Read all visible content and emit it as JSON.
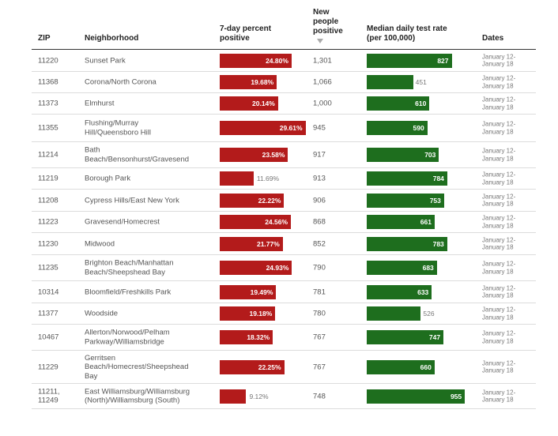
{
  "columns": {
    "zip": "ZIP",
    "neighborhood": "Neighborhood",
    "percent": [
      "7-day percent",
      "positive"
    ],
    "positive": [
      "New",
      "people",
      "positive"
    ],
    "test_rate": [
      "Median daily test rate",
      "(per 100,000)"
    ],
    "dates": "Dates"
  },
  "chart_data": {
    "type": "table",
    "sorted_by": "New people positive (descending)",
    "percent_max": 30,
    "test_rate_max": 1000,
    "rows": [
      {
        "zip": [
          "11220"
        ],
        "neighborhood": [
          "Sunset Park"
        ],
        "percent": 24.8,
        "percent_label": "24.80%",
        "positive": "1,301",
        "test_rate": 827,
        "test_label": "827",
        "dates": [
          "January 12-",
          "January 18"
        ]
      },
      {
        "zip": [
          "11368"
        ],
        "neighborhood": [
          "Corona/North Corona"
        ],
        "percent": 19.68,
        "percent_label": "19.68%",
        "positive": "1,066",
        "test_rate": 451,
        "test_label": "451",
        "dates": [
          "January 12-",
          "January 18"
        ]
      },
      {
        "zip": [
          "11373"
        ],
        "neighborhood": [
          "Elmhurst"
        ],
        "percent": 20.14,
        "percent_label": "20.14%",
        "positive": "1,000",
        "test_rate": 610,
        "test_label": "610",
        "dates": [
          "January 12-",
          "January 18"
        ]
      },
      {
        "zip": [
          "11355"
        ],
        "neighborhood": [
          "Flushing/Murray",
          "Hill/Queensboro Hill"
        ],
        "percent": 29.61,
        "percent_label": "29.61%",
        "positive": "945",
        "test_rate": 590,
        "test_label": "590",
        "dates": [
          "January 12-",
          "January 18"
        ]
      },
      {
        "zip": [
          "11214"
        ],
        "neighborhood": [
          "Bath",
          "Beach/Bensonhurst/Gravesend"
        ],
        "percent": 23.58,
        "percent_label": "23.58%",
        "positive": "917",
        "test_rate": 703,
        "test_label": "703",
        "dates": [
          "January 12-",
          "January 18"
        ]
      },
      {
        "zip": [
          "11219"
        ],
        "neighborhood": [
          "Borough Park"
        ],
        "percent": 11.69,
        "percent_label": "11.69%",
        "positive": "913",
        "test_rate": 784,
        "test_label": "784",
        "dates": [
          "January 12-",
          "January 18"
        ]
      },
      {
        "zip": [
          "11208"
        ],
        "neighborhood": [
          "Cypress Hills/East New York"
        ],
        "percent": 22.22,
        "percent_label": "22.22%",
        "positive": "906",
        "test_rate": 753,
        "test_label": "753",
        "dates": [
          "January 12-",
          "January 18"
        ]
      },
      {
        "zip": [
          "11223"
        ],
        "neighborhood": [
          "Gravesend/Homecrest"
        ],
        "percent": 24.56,
        "percent_label": "24.56%",
        "positive": "868",
        "test_rate": 661,
        "test_label": "661",
        "dates": [
          "January 12-",
          "January 18"
        ]
      },
      {
        "zip": [
          "11230"
        ],
        "neighborhood": [
          "Midwood"
        ],
        "percent": 21.77,
        "percent_label": "21.77%",
        "positive": "852",
        "test_rate": 783,
        "test_label": "783",
        "dates": [
          "January 12-",
          "January 18"
        ]
      },
      {
        "zip": [
          "11235"
        ],
        "neighborhood": [
          "Brighton Beach/Manhattan",
          "Beach/Sheepshead Bay"
        ],
        "percent": 24.93,
        "percent_label": "24.93%",
        "positive": "790",
        "test_rate": 683,
        "test_label": "683",
        "dates": [
          "January 12-",
          "January 18"
        ]
      },
      {
        "zip": [
          "10314"
        ],
        "neighborhood": [
          "Bloomfield/Freshkills Park"
        ],
        "percent": 19.49,
        "percent_label": "19.49%",
        "positive": "781",
        "test_rate": 633,
        "test_label": "633",
        "dates": [
          "January 12-",
          "January 18"
        ]
      },
      {
        "zip": [
          "11377"
        ],
        "neighborhood": [
          "Woodside"
        ],
        "percent": 19.18,
        "percent_label": "19.18%",
        "positive": "780",
        "test_rate": 526,
        "test_label": "526",
        "dates": [
          "January 12-",
          "January 18"
        ]
      },
      {
        "zip": [
          "10467"
        ],
        "neighborhood": [
          "Allerton/Norwood/Pelham",
          "Parkway/Williamsbridge"
        ],
        "percent": 18.32,
        "percent_label": "18.32%",
        "positive": "767",
        "test_rate": 747,
        "test_label": "747",
        "dates": [
          "January 12-",
          "January 18"
        ]
      },
      {
        "zip": [
          "11229"
        ],
        "neighborhood": [
          "Gerritsen",
          "Beach/Homecrest/Sheepshead",
          "Bay"
        ],
        "percent": 22.25,
        "percent_label": "22.25%",
        "positive": "767",
        "test_rate": 660,
        "test_label": "660",
        "dates": [
          "January 12-",
          "January 18"
        ]
      },
      {
        "zip": [
          "11211,",
          "11249"
        ],
        "neighborhood": [
          "East Williamsburg/Williamsburg",
          "(North)/Williamsburg (South)"
        ],
        "percent": 9.12,
        "percent_label": "9.12%",
        "positive": "748",
        "test_rate": 955,
        "test_label": "955",
        "dates": [
          "January 12-",
          "January 18"
        ]
      }
    ]
  },
  "colors": {
    "percent_bar": "#b31b1b",
    "test_bar": "#1e6e1e"
  }
}
